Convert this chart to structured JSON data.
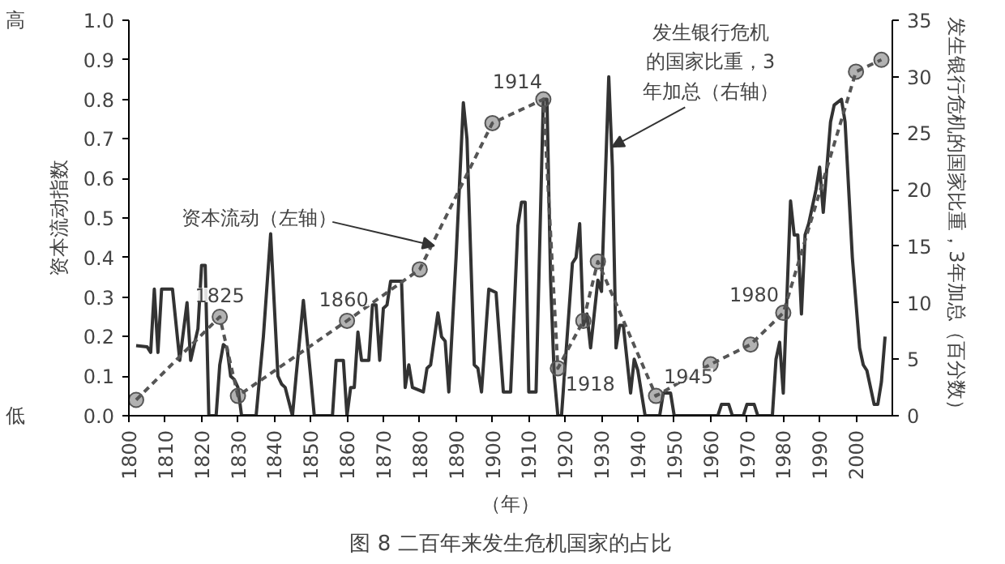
{
  "chart_data": {
    "type": "line",
    "title": "图 8 二百年来发生危机国家的占比",
    "xlabel": "（年）",
    "ylabel": "资本流动指数",
    "y2label": "发生银行危机的国家比重，3年加总（百分数）",
    "xlim": [
      1800,
      2010
    ],
    "xticks": [
      1800,
      1810,
      1820,
      1830,
      1840,
      1850,
      1860,
      1870,
      1880,
      1890,
      1900,
      1910,
      1920,
      1930,
      1940,
      1950,
      1960,
      1970,
      1980,
      1990,
      2000
    ],
    "ylim": [
      0,
      1.0
    ],
    "yticks": [
      {
        "value": 0,
        "label": "0.0"
      },
      0.1,
      0.2,
      0.3,
      0.4,
      0.5,
      0.6,
      0.7,
      0.8,
      0.9,
      {
        "value": 1,
        "label": "1.0"
      }
    ],
    "y2lim": [
      0,
      35
    ],
    "y2ticks": [
      0,
      5,
      10,
      15,
      20,
      25,
      30,
      35
    ],
    "grid": false,
    "series": [
      {
        "axis": "y2",
        "color": "#333333",
        "line_style": "solid",
        "marker": "none",
        "x": [
          1802,
          1805,
          1806,
          1807,
          1808,
          1809,
          1812,
          1814,
          1816,
          1817,
          1819,
          1820,
          1821,
          1822,
          1824,
          1825,
          1826,
          1827,
          1828,
          1829,
          1830,
          1831,
          1835,
          1837,
          1839,
          1841,
          1842,
          1843,
          1845,
          1846,
          1848,
          1850,
          1851,
          1856,
          1857,
          1859,
          1860,
          1861,
          1862,
          1863,
          1864,
          1866,
          1867,
          1868,
          1869,
          1870,
          1871,
          1872,
          1875,
          1876,
          1877,
          1878,
          1881,
          1882,
          1883,
          1885,
          1886,
          1887,
          1888,
          1890,
          1892,
          1893,
          1895,
          1896,
          1897,
          1899,
          1901,
          1903,
          1905,
          1907,
          1908,
          1909,
          1910,
          1912,
          1914,
          1915,
          1916,
          1917,
          1918,
          1919,
          1922,
          1923,
          1924,
          1925,
          1926,
          1927,
          1928,
          1929,
          1930,
          1932,
          1933,
          1934,
          1935,
          1936,
          1937,
          1938,
          1939,
          1940,
          1941,
          1942,
          1946,
          1947,
          1949,
          1950,
          1962,
          1963,
          1965,
          1966,
          1969,
          1970,
          1972,
          1973,
          1977,
          1978,
          1979,
          1980,
          1982,
          1983,
          1984,
          1985,
          1986,
          1987,
          1989,
          1990,
          1991,
          1993,
          1994,
          1996,
          1997,
          1999,
          2001,
          2002,
          2003,
          2005,
          2006,
          2007,
          2008
        ],
        "values": [
          6.2,
          6.1,
          5.6,
          11.2,
          5.6,
          11.2,
          11.2,
          4.9,
          10,
          4.9,
          7.7,
          13.3,
          13.3,
          0,
          0,
          4.5,
          6.3,
          6,
          3.5,
          3.2,
          2.5,
          0,
          0,
          7,
          16.1,
          3.5,
          2.8,
          2.5,
          0,
          3.5,
          10.2,
          3.5,
          0,
          0,
          4.9,
          4.9,
          0,
          2.5,
          2.5,
          7.4,
          4.9,
          4.9,
          9.8,
          9.8,
          4.9,
          9.5,
          9.8,
          11.9,
          11.9,
          2.5,
          4.5,
          2.5,
          2.1,
          4.2,
          4.5,
          9.1,
          7,
          6.6,
          2.1,
          14,
          27.7,
          24.5,
          4.5,
          4.2,
          2.1,
          11.2,
          10.9,
          2.1,
          2.1,
          16.8,
          18.9,
          18.9,
          2.1,
          2.1,
          28,
          28,
          12,
          3.5,
          0,
          0,
          13.5,
          14,
          17,
          8,
          9,
          6,
          9,
          12,
          11,
          30,
          22,
          6,
          8,
          8,
          5,
          2,
          5,
          4,
          2,
          0,
          0,
          2,
          2,
          0,
          0,
          1,
          1,
          0,
          0,
          1,
          1,
          0,
          0,
          5,
          6.5,
          2,
          19,
          16,
          16,
          9,
          16,
          17,
          20,
          22,
          18,
          26,
          27.5,
          28,
          26,
          14,
          6,
          4.5,
          4,
          1,
          1,
          3,
          7
        ]
      },
      {
        "axis": "y",
        "color": "#555555",
        "line_style": "dashed",
        "marker": "circle",
        "x": [
          1802,
          1825,
          1830,
          1860,
          1880,
          1900,
          1914,
          1918,
          1925,
          1929,
          1945,
          1960,
          1971,
          1980,
          2000,
          2007
        ],
        "values": [
          0.04,
          0.25,
          0.05,
          0.24,
          0.37,
          0.74,
          0.8,
          0.12,
          0.24,
          0.39,
          0.05,
          0.13,
          0.18,
          0.26,
          0.87,
          0.9
        ]
      }
    ],
    "annotations": [
      "高",
      "低",
      {
        "text": "资本流动（左轴）",
        "x": 1884,
        "y": 0.43
      },
      {
        "text": "发生银行危机的国家比重，3年加总（右轴）",
        "x": 1933,
        "y": 0.68
      },
      {
        "text": "1825",
        "x": 1825,
        "y": 0.25
      },
      {
        "text": "1860",
        "x": 1860,
        "y": 0.24
      },
      {
        "text": "1914",
        "x": 1914,
        "y": 0.8
      },
      {
        "text": "1918",
        "x": 1918,
        "y": 0.12
      },
      {
        "text": "1945",
        "x": 1945,
        "y": 0.05
      },
      {
        "text": "1980",
        "x": 1980,
        "y": 0.26
      }
    ]
  }
}
